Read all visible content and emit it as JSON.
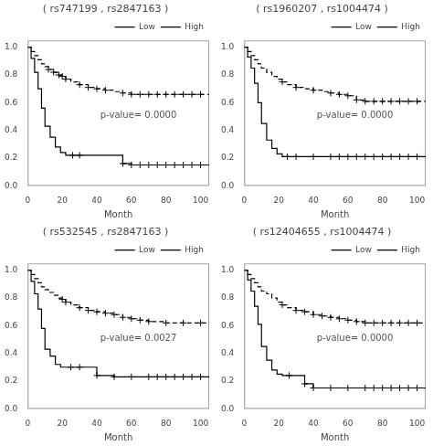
{
  "chart_data": [
    {
      "type": "line",
      "title": "( rs747199 , rs2847163 )",
      "annotation": "p-value= 0.0000",
      "x_label": "Month",
      "xlim": [
        0,
        105
      ],
      "ylim": [
        0.0,
        1.05
      ],
      "xticks": [
        0,
        20,
        40,
        60,
        80,
        100
      ],
      "yticks": [
        {
          "value": 0.0,
          "label": "0.0"
        },
        0.2,
        0.4,
        0.6,
        0.8,
        {
          "value": 1.0,
          "label": "1.0"
        }
      ],
      "grid": false,
      "legend": "upper right",
      "series": [
        {
          "name": "Low",
          "color": "#000000",
          "line_style": "dashed",
          "marker": "plus",
          "x": [
            0,
            2,
            4,
            6,
            8,
            10,
            12,
            15,
            18,
            20,
            22,
            25,
            30,
            35,
            40,
            45,
            50,
            55,
            60,
            70,
            80,
            90,
            100,
            105
          ],
          "values": [
            1.0,
            0.97,
            0.94,
            0.91,
            0.88,
            0.86,
            0.84,
            0.82,
            0.8,
            0.79,
            0.77,
            0.75,
            0.73,
            0.71,
            0.7,
            0.69,
            0.68,
            0.67,
            0.66,
            0.66,
            0.66,
            0.66,
            0.66,
            0.66
          ],
          "censor_x": [
            12,
            15,
            18,
            20,
            22,
            30,
            35,
            40,
            45,
            55,
            60,
            65,
            70,
            75,
            80,
            85,
            90,
            95,
            100
          ],
          "censor_values": [
            0.84,
            0.82,
            0.8,
            0.79,
            0.77,
            0.73,
            0.71,
            0.7,
            0.69,
            0.67,
            0.66,
            0.66,
            0.66,
            0.66,
            0.66,
            0.66,
            0.66,
            0.66,
            0.66
          ]
        },
        {
          "name": "High",
          "color": "#000000",
          "line_style": "solid",
          "marker": "plus",
          "x": [
            0,
            2,
            4,
            6,
            8,
            10,
            13,
            16,
            19,
            22,
            26,
            55,
            60,
            70,
            80,
            90,
            100,
            105
          ],
          "values": [
            1.0,
            0.92,
            0.82,
            0.7,
            0.56,
            0.43,
            0.35,
            0.28,
            0.24,
            0.22,
            0.22,
            0.16,
            0.15,
            0.15,
            0.15,
            0.15,
            0.15,
            0.15
          ],
          "censor_x": [
            26,
            30,
            55,
            60,
            65,
            70,
            75,
            80,
            85,
            90,
            95,
            100
          ],
          "censor_values": [
            0.22,
            0.22,
            0.16,
            0.15,
            0.15,
            0.15,
            0.15,
            0.15,
            0.15,
            0.15,
            0.15,
            0.15
          ]
        }
      ]
    },
    {
      "type": "line",
      "title": "( rs1960207 , rs1004474 )",
      "annotation": "p-value= 0.0000",
      "x_label": "Month",
      "xlim": [
        0,
        105
      ],
      "ylim": [
        0.0,
        1.05
      ],
      "xticks": [
        0,
        20,
        40,
        60,
        80,
        100
      ],
      "yticks": [
        {
          "value": 0.0,
          "label": "0.0"
        },
        0.2,
        0.4,
        0.6,
        0.8,
        {
          "value": 1.0,
          "label": "1.0"
        }
      ],
      "grid": false,
      "legend": "upper right",
      "series": [
        {
          "name": "Low",
          "color": "#000000",
          "line_style": "dashed",
          "marker": "plus",
          "x": [
            0,
            2,
            4,
            6,
            8,
            10,
            13,
            16,
            19,
            22,
            25,
            30,
            35,
            40,
            45,
            50,
            55,
            60,
            65,
            70,
            80,
            90,
            100,
            105
          ],
          "values": [
            1.0,
            0.97,
            0.94,
            0.91,
            0.88,
            0.85,
            0.82,
            0.79,
            0.77,
            0.75,
            0.73,
            0.71,
            0.7,
            0.69,
            0.68,
            0.67,
            0.66,
            0.65,
            0.62,
            0.61,
            0.61,
            0.61,
            0.61,
            0.61
          ],
          "censor_x": [
            22,
            30,
            40,
            50,
            55,
            60,
            65,
            70,
            75,
            80,
            85,
            90,
            95,
            100
          ],
          "censor_values": [
            0.75,
            0.71,
            0.69,
            0.67,
            0.66,
            0.65,
            0.62,
            0.61,
            0.61,
            0.61,
            0.61,
            0.61,
            0.61,
            0.61
          ]
        },
        {
          "name": "High",
          "color": "#000000",
          "line_style": "solid",
          "marker": "plus",
          "x": [
            0,
            2,
            4,
            6,
            8,
            10,
            13,
            16,
            19,
            22,
            25,
            55,
            60,
            70,
            80,
            90,
            100,
            105
          ],
          "values": [
            1.0,
            0.93,
            0.85,
            0.74,
            0.6,
            0.45,
            0.33,
            0.27,
            0.23,
            0.21,
            0.21,
            0.21,
            0.21,
            0.21,
            0.21,
            0.21,
            0.21,
            0.21
          ],
          "censor_x": [
            25,
            30,
            40,
            50,
            55,
            60,
            65,
            70,
            75,
            80,
            85,
            90,
            95,
            100
          ],
          "censor_values": [
            0.21,
            0.21,
            0.21,
            0.21,
            0.21,
            0.21,
            0.21,
            0.21,
            0.21,
            0.21,
            0.21,
            0.21,
            0.21,
            0.21
          ]
        }
      ]
    },
    {
      "type": "line",
      "title": "( rs532545 , rs2847163 )",
      "annotation": "p-value= 0.0027",
      "x_label": "Month",
      "xlim": [
        0,
        105
      ],
      "ylim": [
        0.0,
        1.05
      ],
      "xticks": [
        0,
        20,
        40,
        60,
        80,
        100
      ],
      "yticks": [
        {
          "value": 0.0,
          "label": "0.0"
        },
        0.2,
        0.4,
        0.6,
        0.8,
        {
          "value": 1.0,
          "label": "1.0"
        }
      ],
      "grid": false,
      "legend": "upper right",
      "series": [
        {
          "name": "Low",
          "color": "#000000",
          "line_style": "dashed",
          "marker": "plus",
          "x": [
            0,
            2,
            4,
            6,
            8,
            10,
            12,
            15,
            18,
            20,
            22,
            25,
            30,
            35,
            40,
            45,
            50,
            55,
            60,
            65,
            70,
            80,
            90,
            100,
            105
          ],
          "values": [
            1.0,
            0.97,
            0.94,
            0.91,
            0.88,
            0.86,
            0.84,
            0.82,
            0.8,
            0.79,
            0.77,
            0.75,
            0.73,
            0.71,
            0.7,
            0.69,
            0.68,
            0.66,
            0.65,
            0.64,
            0.63,
            0.62,
            0.62,
            0.62,
            0.62
          ],
          "censor_x": [
            20,
            22,
            30,
            35,
            40,
            45,
            50,
            55,
            60,
            65,
            70,
            80,
            90,
            100
          ],
          "censor_values": [
            0.79,
            0.77,
            0.73,
            0.71,
            0.7,
            0.69,
            0.68,
            0.66,
            0.65,
            0.64,
            0.63,
            0.62,
            0.62,
            0.62
          ]
        },
        {
          "name": "High",
          "color": "#000000",
          "line_style": "solid",
          "marker": "plus",
          "x": [
            0,
            2,
            4,
            6,
            8,
            10,
            13,
            16,
            19,
            22,
            25,
            40,
            50,
            70,
            80,
            90,
            100,
            105
          ],
          "values": [
            1.0,
            0.92,
            0.83,
            0.72,
            0.58,
            0.43,
            0.38,
            0.32,
            0.3,
            0.3,
            0.3,
            0.24,
            0.23,
            0.23,
            0.23,
            0.23,
            0.23,
            0.23
          ],
          "censor_x": [
            25,
            30,
            40,
            50,
            60,
            70,
            75,
            80,
            85,
            90,
            95,
            100
          ],
          "censor_values": [
            0.3,
            0.3,
            0.24,
            0.23,
            0.23,
            0.23,
            0.23,
            0.23,
            0.23,
            0.23,
            0.23,
            0.23
          ]
        }
      ]
    },
    {
      "type": "line",
      "title": "( rs12404655 , rs1004474 )",
      "annotation": "p-value= 0.0000",
      "x_label": "Month",
      "xlim": [
        0,
        105
      ],
      "ylim": [
        0.0,
        1.05
      ],
      "xticks": [
        0,
        20,
        40,
        60,
        80,
        100
      ],
      "yticks": [
        {
          "value": 0.0,
          "label": "0.0"
        },
        0.2,
        0.4,
        0.6,
        0.8,
        {
          "value": 1.0,
          "label": "1.0"
        }
      ],
      "grid": false,
      "legend": "upper right",
      "series": [
        {
          "name": "Low",
          "color": "#000000",
          "line_style": "dashed",
          "marker": "plus",
          "x": [
            0,
            2,
            4,
            6,
            8,
            10,
            13,
            16,
            19,
            22,
            25,
            30,
            35,
            40,
            45,
            50,
            55,
            60,
            65,
            70,
            80,
            90,
            100,
            105
          ],
          "values": [
            1.0,
            0.97,
            0.94,
            0.91,
            0.88,
            0.85,
            0.83,
            0.8,
            0.77,
            0.75,
            0.73,
            0.71,
            0.7,
            0.68,
            0.67,
            0.66,
            0.65,
            0.64,
            0.63,
            0.62,
            0.62,
            0.62,
            0.62,
            0.62
          ],
          "censor_x": [
            22,
            30,
            35,
            40,
            45,
            50,
            55,
            60,
            65,
            70,
            75,
            80,
            85,
            90,
            95,
            100
          ],
          "censor_values": [
            0.75,
            0.71,
            0.7,
            0.68,
            0.67,
            0.66,
            0.65,
            0.64,
            0.63,
            0.62,
            0.62,
            0.62,
            0.62,
            0.62,
            0.62,
            0.62
          ]
        },
        {
          "name": "High",
          "color": "#000000",
          "line_style": "solid",
          "marker": "plus",
          "x": [
            0,
            2,
            4,
            6,
            8,
            10,
            13,
            16,
            19,
            22,
            26,
            35,
            40,
            50,
            60,
            70,
            80,
            90,
            100,
            105
          ],
          "values": [
            1.0,
            0.93,
            0.85,
            0.74,
            0.61,
            0.45,
            0.35,
            0.28,
            0.25,
            0.24,
            0.24,
            0.18,
            0.15,
            0.15,
            0.15,
            0.15,
            0.15,
            0.15,
            0.15,
            0.15
          ],
          "censor_x": [
            26,
            35,
            40,
            50,
            60,
            70,
            75,
            80,
            85,
            90,
            95,
            100
          ],
          "censor_values": [
            0.24,
            0.18,
            0.15,
            0.15,
            0.15,
            0.15,
            0.15,
            0.15,
            0.15,
            0.15,
            0.15,
            0.15
          ]
        }
      ]
    }
  ]
}
